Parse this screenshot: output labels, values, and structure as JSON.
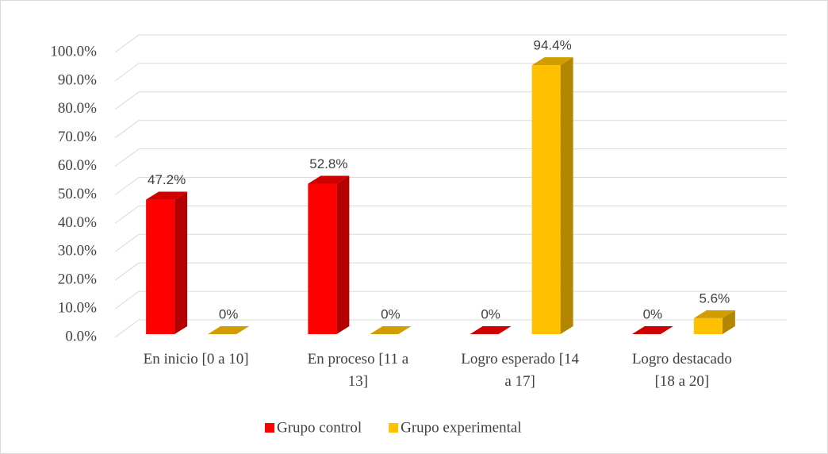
{
  "chart_data": {
    "type": "bar3d",
    "categories": [
      "En inicio [0 a 10]",
      "En proceso [11 a 13]",
      "Logro esperado [14 a 17]",
      "Logro destacado [18 a 20]"
    ],
    "series": [
      {
        "name": "Grupo control",
        "color": "#ff0000",
        "values": [
          47.2,
          52.8,
          0,
          0
        ],
        "value_labels": [
          "47.2%",
          "52.8%",
          "0%",
          "0%"
        ]
      },
      {
        "name": "Grupo experimental",
        "color": "#ffc000",
        "values": [
          0,
          0,
          94.4,
          5.6
        ],
        "value_labels": [
          "0%",
          "0%",
          "94.4%",
          "5.6%"
        ]
      }
    ],
    "ylim": [
      0,
      100
    ],
    "yticks": [
      {
        "value": 0,
        "label": "0.0%"
      },
      {
        "value": 10,
        "label": "10.0%"
      },
      {
        "value": 20,
        "label": "20.0%"
      },
      {
        "value": 30,
        "label": "30.0%"
      },
      {
        "value": 40,
        "label": "40.0%"
      },
      {
        "value": 50,
        "label": "50.0%"
      },
      {
        "value": 60,
        "label": "60.0%"
      },
      {
        "value": 70,
        "label": "70.0%"
      },
      {
        "value": 80,
        "label": "80.0%"
      },
      {
        "value": 90,
        "label": "90.0%"
      },
      {
        "value": 100,
        "label": "100.0%"
      }
    ],
    "grid": true,
    "legend": "bottom"
  }
}
